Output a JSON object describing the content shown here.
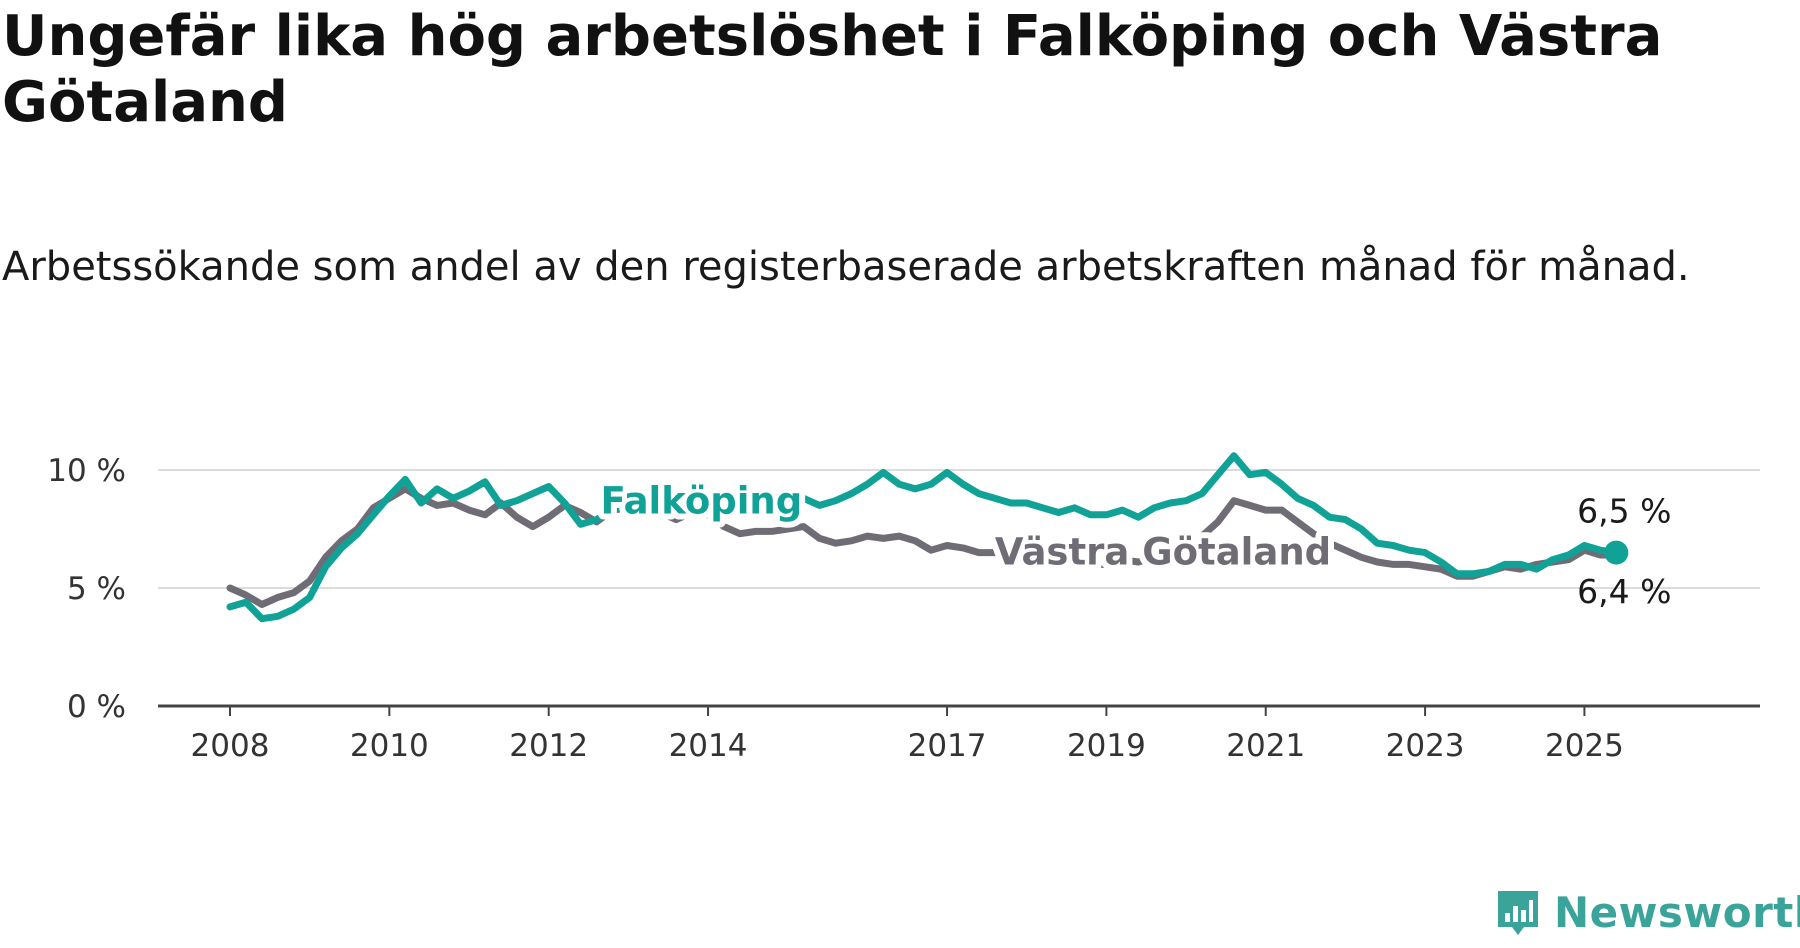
{
  "title": "Ungefär lika hög arbetslöshet i Falköping och Västra Götaland",
  "subtitle": "Arbetssökande som andel av den registerbaserade arbetskraften månad för månad.",
  "brand": {
    "name": "Newsworthy",
    "color": "#3aa39a"
  },
  "chart_data": {
    "type": "line",
    "title": "Ungefär lika hög arbetslöshet i Falköping och Västra Götaland",
    "subtitle": "Arbetssökande som andel av den registerbaserade arbetskraften månad för månad.",
    "xlabel": "",
    "ylabel": "",
    "xlim": [
      2008.0,
      2026.3
    ],
    "ylim": [
      0,
      10
    ],
    "x_ticks": [
      {
        "value": 2008,
        "label": "2008"
      },
      {
        "value": 2010,
        "label": "2010"
      },
      {
        "value": 2012,
        "label": "2012"
      },
      {
        "value": 2014,
        "label": "2014"
      },
      {
        "value": 2017,
        "label": "2017"
      },
      {
        "value": 2019,
        "label": "2019"
      },
      {
        "value": 2021,
        "label": "2021"
      },
      {
        "value": 2023,
        "label": "2023"
      },
      {
        "value": 2025,
        "label": "2025"
      }
    ],
    "y_ticks": [
      {
        "value": 0,
        "label": "0 %"
      },
      {
        "value": 5,
        "label": "5 %"
      },
      {
        "value": 10,
        "label": "10 %"
      }
    ],
    "grid": true,
    "legend": "inline labels",
    "series": [
      {
        "name": "Västra Götaland",
        "color": "#706c75",
        "end_label": "6,4 %",
        "points": [
          [
            2008.0,
            5.0
          ],
          [
            2008.2,
            4.7
          ],
          [
            2008.4,
            4.3
          ],
          [
            2008.6,
            4.6
          ],
          [
            2008.8,
            4.8
          ],
          [
            2009.0,
            5.3
          ],
          [
            2009.2,
            6.3
          ],
          [
            2009.4,
            7.0
          ],
          [
            2009.6,
            7.5
          ],
          [
            2009.8,
            8.4
          ],
          [
            2010.0,
            8.8
          ],
          [
            2010.2,
            9.2
          ],
          [
            2010.4,
            8.8
          ],
          [
            2010.6,
            8.5
          ],
          [
            2010.8,
            8.6
          ],
          [
            2011.0,
            8.3
          ],
          [
            2011.2,
            8.1
          ],
          [
            2011.4,
            8.6
          ],
          [
            2011.6,
            8.0
          ],
          [
            2011.8,
            7.6
          ],
          [
            2012.0,
            8.0
          ],
          [
            2012.2,
            8.5
          ],
          [
            2012.4,
            8.2
          ],
          [
            2012.6,
            7.8
          ],
          [
            2012.8,
            8.3
          ],
          [
            2013.0,
            8.4
          ],
          [
            2013.2,
            8.1
          ],
          [
            2013.4,
            8.2
          ],
          [
            2013.6,
            7.9
          ],
          [
            2013.8,
            8.2
          ],
          [
            2014.0,
            8.1
          ],
          [
            2014.2,
            7.6
          ],
          [
            2014.4,
            7.3
          ],
          [
            2014.6,
            7.4
          ],
          [
            2014.8,
            7.4
          ],
          [
            2015.0,
            7.5
          ],
          [
            2015.2,
            7.6
          ],
          [
            2015.4,
            7.1
          ],
          [
            2015.6,
            6.9
          ],
          [
            2015.8,
            7.0
          ],
          [
            2016.0,
            7.2
          ],
          [
            2016.2,
            7.1
          ],
          [
            2016.4,
            7.2
          ],
          [
            2016.6,
            7.0
          ],
          [
            2016.8,
            6.6
          ],
          [
            2017.0,
            6.8
          ],
          [
            2017.2,
            6.7
          ],
          [
            2017.4,
            6.5
          ],
          [
            2017.6,
            6.5
          ],
          [
            2017.8,
            6.4
          ],
          [
            2018.0,
            6.5
          ],
          [
            2018.2,
            6.2
          ],
          [
            2018.4,
            6.1
          ],
          [
            2018.6,
            6.2
          ],
          [
            2018.8,
            6.0
          ],
          [
            2019.0,
            6.0
          ],
          [
            2019.2,
            6.2
          ],
          [
            2019.4,
            6.1
          ],
          [
            2019.6,
            6.3
          ],
          [
            2019.8,
            6.5
          ],
          [
            2020.0,
            6.6
          ],
          [
            2020.2,
            7.2
          ],
          [
            2020.4,
            7.8
          ],
          [
            2020.6,
            8.7
          ],
          [
            2020.8,
            8.5
          ],
          [
            2021.0,
            8.3
          ],
          [
            2021.2,
            8.3
          ],
          [
            2021.4,
            7.8
          ],
          [
            2021.6,
            7.3
          ],
          [
            2021.8,
            6.9
          ],
          [
            2022.0,
            6.6
          ],
          [
            2022.2,
            6.3
          ],
          [
            2022.4,
            6.1
          ],
          [
            2022.6,
            6.0
          ],
          [
            2022.8,
            6.0
          ],
          [
            2023.0,
            5.9
          ],
          [
            2023.2,
            5.8
          ],
          [
            2023.4,
            5.5
          ],
          [
            2023.6,
            5.5
          ],
          [
            2023.8,
            5.7
          ],
          [
            2024.0,
            5.9
          ],
          [
            2024.2,
            5.8
          ],
          [
            2024.4,
            6.0
          ],
          [
            2024.6,
            6.1
          ],
          [
            2024.8,
            6.2
          ],
          [
            2025.0,
            6.6
          ],
          [
            2025.2,
            6.4
          ],
          [
            2025.4,
            6.4
          ]
        ]
      },
      {
        "name": "Falköping",
        "color": "#10a296",
        "end_label": "6,5 %",
        "points": [
          [
            2008.0,
            4.2
          ],
          [
            2008.2,
            4.4
          ],
          [
            2008.4,
            3.7
          ],
          [
            2008.6,
            3.8
          ],
          [
            2008.8,
            4.1
          ],
          [
            2009.0,
            4.6
          ],
          [
            2009.2,
            5.9
          ],
          [
            2009.4,
            6.7
          ],
          [
            2009.6,
            7.3
          ],
          [
            2009.8,
            8.1
          ],
          [
            2010.0,
            8.9
          ],
          [
            2010.2,
            9.6
          ],
          [
            2010.4,
            8.6
          ],
          [
            2010.6,
            9.2
          ],
          [
            2010.8,
            8.8
          ],
          [
            2011.0,
            9.1
          ],
          [
            2011.2,
            9.5
          ],
          [
            2011.4,
            8.5
          ],
          [
            2011.6,
            8.7
          ],
          [
            2011.8,
            9.0
          ],
          [
            2012.0,
            9.3
          ],
          [
            2012.2,
            8.6
          ],
          [
            2012.4,
            7.7
          ],
          [
            2012.6,
            7.9
          ],
          [
            2012.8,
            8.3
          ],
          [
            2013.0,
            8.5
          ],
          [
            2013.2,
            8.6
          ],
          [
            2013.4,
            8.7
          ],
          [
            2013.6,
            8.6
          ],
          [
            2013.8,
            8.8
          ],
          [
            2014.0,
            8.9
          ],
          [
            2014.2,
            8.8
          ],
          [
            2014.4,
            8.9
          ],
          [
            2014.6,
            8.9
          ],
          [
            2014.8,
            8.8
          ],
          [
            2015.0,
            8.9
          ],
          [
            2015.2,
            8.8
          ],
          [
            2015.4,
            8.5
          ],
          [
            2015.6,
            8.7
          ],
          [
            2015.8,
            9.0
          ],
          [
            2016.0,
            9.4
          ],
          [
            2016.2,
            9.9
          ],
          [
            2016.4,
            9.4
          ],
          [
            2016.6,
            9.2
          ],
          [
            2016.8,
            9.4
          ],
          [
            2017.0,
            9.9
          ],
          [
            2017.2,
            9.4
          ],
          [
            2017.4,
            9.0
          ],
          [
            2017.6,
            8.8
          ],
          [
            2017.8,
            8.6
          ],
          [
            2018.0,
            8.6
          ],
          [
            2018.2,
            8.4
          ],
          [
            2018.4,
            8.2
          ],
          [
            2018.6,
            8.4
          ],
          [
            2018.8,
            8.1
          ],
          [
            2019.0,
            8.1
          ],
          [
            2019.2,
            8.3
          ],
          [
            2019.4,
            8.0
          ],
          [
            2019.6,
            8.4
          ],
          [
            2019.8,
            8.6
          ],
          [
            2020.0,
            8.7
          ],
          [
            2020.2,
            9.0
          ],
          [
            2020.4,
            9.8
          ],
          [
            2020.6,
            10.6
          ],
          [
            2020.8,
            9.8
          ],
          [
            2021.0,
            9.9
          ],
          [
            2021.2,
            9.4
          ],
          [
            2021.4,
            8.8
          ],
          [
            2021.6,
            8.5
          ],
          [
            2021.8,
            8.0
          ],
          [
            2022.0,
            7.9
          ],
          [
            2022.2,
            7.5
          ],
          [
            2022.4,
            6.9
          ],
          [
            2022.6,
            6.8
          ],
          [
            2022.8,
            6.6
          ],
          [
            2023.0,
            6.5
          ],
          [
            2023.2,
            6.1
          ],
          [
            2023.4,
            5.6
          ],
          [
            2023.6,
            5.6
          ],
          [
            2023.8,
            5.7
          ],
          [
            2024.0,
            6.0
          ],
          [
            2024.2,
            6.0
          ],
          [
            2024.4,
            5.8
          ],
          [
            2024.6,
            6.2
          ],
          [
            2024.8,
            6.4
          ],
          [
            2025.0,
            6.8
          ],
          [
            2025.2,
            6.6
          ],
          [
            2025.4,
            6.5
          ]
        ]
      }
    ]
  }
}
